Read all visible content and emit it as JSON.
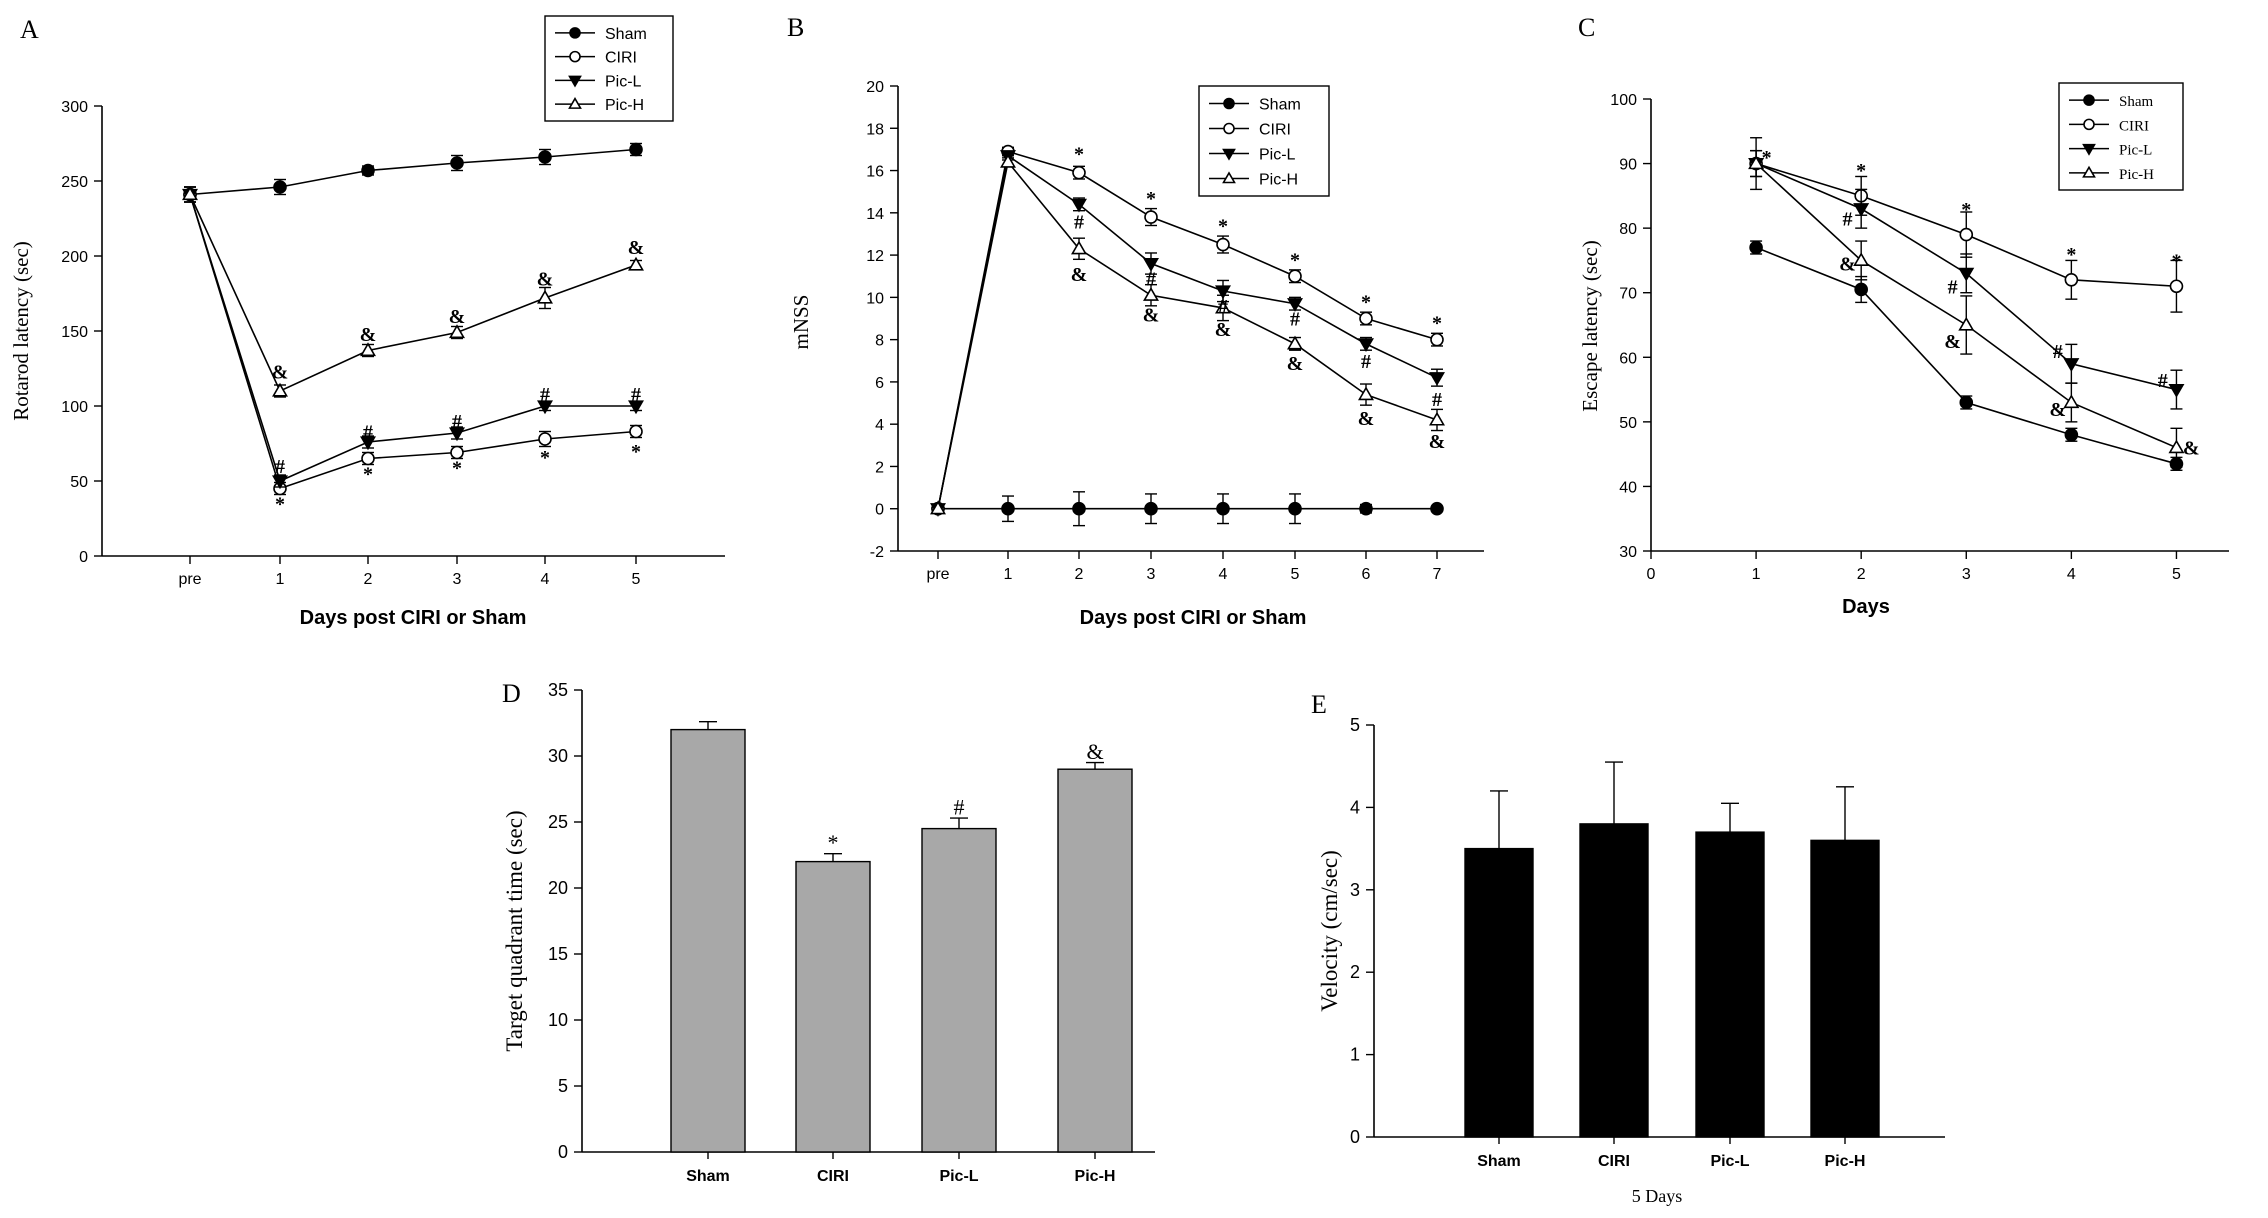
{
  "panels": [
    {
      "letter": "A",
      "chart_data": {
        "type": "line",
        "xlabel": "Days post CIRI or Sham",
        "ylabel": "Rotarod latency (sec)",
        "categories": [
          "pre",
          "1",
          "2",
          "3",
          "4",
          "5"
        ],
        "ylim": [
          0,
          300
        ],
        "yticks": [
          0,
          50,
          100,
          150,
          200,
          250,
          300
        ],
        "legend_position": "top-right",
        "series": [
          {
            "name": "Sham",
            "marker": "circle-filled",
            "values": [
              241,
              246,
              257,
              262,
              266,
              271
            ],
            "errors": [
              5,
              5,
              3,
              5,
              5,
              4
            ]
          },
          {
            "name": "CIRI",
            "marker": "circle-open",
            "values": [
              241,
              45,
              65,
              69,
              78,
              83
            ],
            "errors": [
              5,
              4,
              4,
              4,
              5,
              4
            ]
          },
          {
            "name": "Pic-L",
            "marker": "triangle-down-filled",
            "values": [
              241,
              50,
              76,
              82,
              100,
              100
            ],
            "errors": [
              5,
              4,
              4,
              4,
              3,
              3
            ]
          },
          {
            "name": "Pic-H",
            "marker": "triangle-up-open",
            "values": [
              241,
              110,
              137,
              149,
              172,
              194
            ],
            "errors": [
              5,
              4,
              4,
              4,
              7,
              3
            ]
          }
        ],
        "annotations": [
          {
            "text": "*",
            "x": 1,
            "y": 35
          },
          {
            "text": "*",
            "x": 2,
            "y": 55
          },
          {
            "text": "*",
            "x": 3,
            "y": 59
          },
          {
            "text": "*",
            "x": 4,
            "y": 66
          },
          {
            "text": "*",
            "x": 5,
            "y": 70
          },
          {
            "text": "#",
            "x": 1,
            "y": 60
          },
          {
            "text": "#",
            "x": 2,
            "y": 83
          },
          {
            "text": "#",
            "x": 3,
            "y": 90
          },
          {
            "text": "#",
            "x": 4,
            "y": 108
          },
          {
            "text": "#",
            "x": 5,
            "y": 108
          },
          {
            "text": "&",
            "x": 1,
            "y": 123
          },
          {
            "text": "&",
            "x": 2,
            "y": 148
          },
          {
            "text": "&",
            "x": 3,
            "y": 160
          },
          {
            "text": "&",
            "x": 4,
            "y": 185
          },
          {
            "text": "&",
            "x": 5,
            "y": 206
          }
        ]
      }
    },
    {
      "letter": "B",
      "chart_data": {
        "type": "line",
        "xlabel": "Days post CIRI or Sham",
        "ylabel": "mNSS",
        "categories": [
          "pre",
          "1",
          "2",
          "3",
          "4",
          "5",
          "6",
          "7"
        ],
        "ylim": [
          -2,
          20
        ],
        "yticks": [
          -2,
          0,
          2,
          4,
          6,
          8,
          10,
          12,
          14,
          16,
          18,
          20
        ],
        "legend_position": "top-right",
        "series": [
          {
            "name": "Sham",
            "marker": "circle-filled",
            "values": [
              0,
              0,
              0,
              0,
              0,
              0,
              0,
              0
            ],
            "errors": [
              0,
              0.6,
              0.8,
              0.7,
              0.7,
              0.7,
              0.2,
              0.1
            ]
          },
          {
            "name": "CIRI",
            "marker": "circle-open",
            "values": [
              0,
              16.9,
              15.9,
              13.8,
              12.5,
              11,
              9,
              8
            ],
            "errors": [
              0,
              0.2,
              0.3,
              0.4,
              0.4,
              0.3,
              0.3,
              0.3
            ]
          },
          {
            "name": "Pic-L",
            "marker": "triangle-down-filled",
            "values": [
              0,
              16.7,
              14.4,
              11.6,
              10.3,
              9.7,
              7.8,
              6.2
            ],
            "errors": [
              0,
              0.2,
              0.3,
              0.5,
              0.5,
              0.3,
              0.3,
              0.4
            ]
          },
          {
            "name": "Pic-H",
            "marker": "triangle-up-open",
            "values": [
              0,
              16.4,
              12.3,
              10.1,
              9.5,
              7.8,
              5.4,
              4.2
            ],
            "errors": [
              0,
              0.2,
              0.5,
              0.5,
              0.6,
              0.3,
              0.5,
              0.5
            ]
          }
        ],
        "annotations": [
          {
            "text": "*",
            "x": 2,
            "y": 16.8
          },
          {
            "text": "*",
            "x": 3,
            "y": 14.7
          },
          {
            "text": "*",
            "x": 4,
            "y": 13.4
          },
          {
            "text": "*",
            "x": 5,
            "y": 11.8
          },
          {
            "text": "*",
            "x": 6,
            "y": 9.8
          },
          {
            "text": "*",
            "x": 7,
            "y": 8.8
          },
          {
            "text": "#",
            "x": 2,
            "y": 13.6
          },
          {
            "text": "#",
            "x": 3,
            "y": 10.9
          },
          {
            "text": "#",
            "x": 4,
            "y": 9.6
          },
          {
            "text": "#",
            "x": 5,
            "y": 9
          },
          {
            "text": "#",
            "x": 6,
            "y": 7
          },
          {
            "text": "#",
            "x": 7,
            "y": 5.2
          },
          {
            "text": "&",
            "x": 2,
            "y": 11.1
          },
          {
            "text": "&",
            "x": 3,
            "y": 9.2
          },
          {
            "text": "&",
            "x": 4,
            "y": 8.5
          },
          {
            "text": "&",
            "x": 5,
            "y": 6.9
          },
          {
            "text": "&",
            "x": 6,
            "y": 4.3
          },
          {
            "text": "&",
            "x": 7,
            "y": 3.2
          }
        ]
      }
    },
    {
      "letter": "C",
      "chart_data": {
        "type": "line",
        "xlabel": "Days",
        "ylabel": "Escape latency (sec)",
        "x": [
          1,
          2,
          3,
          4,
          5
        ],
        "xlim": [
          0,
          5.5
        ],
        "xticks": [
          0,
          1,
          2,
          3,
          4,
          5
        ],
        "ylim": [
          30,
          100
        ],
        "yticks": [
          30,
          40,
          50,
          60,
          70,
          80,
          90,
          100
        ],
        "legend_position": "top-right",
        "series": [
          {
            "name": "Sham",
            "marker": "circle-filled",
            "values": [
              77,
              70.5,
              53,
              48,
              43.5
            ],
            "errors": [
              1,
              2,
              1,
              1,
              1
            ]
          },
          {
            "name": "CIRI",
            "marker": "circle-open",
            "values": [
              90,
              85,
              79,
              72,
              71
            ],
            "errors": [
              2,
              3,
              3.5,
              3,
              4
            ]
          },
          {
            "name": "Pic-L",
            "marker": "triangle-down-filled",
            "values": [
              90,
              83,
              73,
              59,
              55
            ],
            "errors": [
              2,
              3,
              3,
              3,
              3
            ]
          },
          {
            "name": "Pic-H",
            "marker": "triangle-up-open",
            "values": [
              90,
              75,
              65,
              53,
              46
            ],
            "errors": [
              4,
              3,
              4.5,
              3,
              3
            ]
          }
        ],
        "annotations": [
          {
            "text": "*",
            "x": 1.1,
            "y": 91
          },
          {
            "text": "*",
            "x": 2,
            "y": 89
          },
          {
            "text": "*",
            "x": 3,
            "y": 83
          },
          {
            "text": "*",
            "x": 4,
            "y": 76
          },
          {
            "text": "*",
            "x": 5,
            "y": 75
          },
          {
            "text": "#",
            "x": 1.87,
            "y": 81.5
          },
          {
            "text": "#",
            "x": 2.87,
            "y": 71
          },
          {
            "text": "#",
            "x": 3.87,
            "y": 61
          },
          {
            "text": "#",
            "x": 4.87,
            "y": 56.5
          },
          {
            "text": "&",
            "x": 1.87,
            "y": 74.5
          },
          {
            "text": "&",
            "x": 2.87,
            "y": 62.5
          },
          {
            "text": "&",
            "x": 3.87,
            "y": 52
          },
          {
            "text": "&",
            "x": 5.14,
            "y": 46
          }
        ]
      }
    },
    {
      "letter": "D",
      "chart_data": {
        "type": "bar",
        "xlabel": "",
        "ylabel": "Target quadrant time (sec)",
        "categories": [
          "Sham",
          "CIRI",
          "Pic-L",
          "Pic-H"
        ],
        "values": [
          32,
          22,
          24.5,
          29
        ],
        "errors": [
          0.6,
          0.6,
          0.8,
          0.5
        ],
        "ylim": [
          0,
          35
        ],
        "yticks": [
          0,
          5,
          10,
          15,
          20,
          25,
          30,
          35
        ],
        "bar_color": "#a8a8a8",
        "annotations": [
          {
            "text": "*",
            "category": 1,
            "y": 23.4
          },
          {
            "text": "#",
            "category": 2,
            "y": 26.1
          },
          {
            "text": "&",
            "category": 3,
            "y": 30.3
          }
        ]
      }
    },
    {
      "letter": "E",
      "chart_data": {
        "type": "bar",
        "xlabel": "5 Days",
        "ylabel": "Velocity (cm/sec)",
        "categories": [
          "Sham",
          "CIRI",
          "Pic-L",
          "Pic-H"
        ],
        "values": [
          3.5,
          3.8,
          3.7,
          3.6
        ],
        "errors": [
          0.7,
          0.75,
          0.35,
          0.65
        ],
        "ylim": [
          0,
          5
        ],
        "yticks": [
          0,
          1,
          2,
          3,
          4,
          5
        ],
        "bar_color": "#000000",
        "annotations": []
      }
    }
  ]
}
